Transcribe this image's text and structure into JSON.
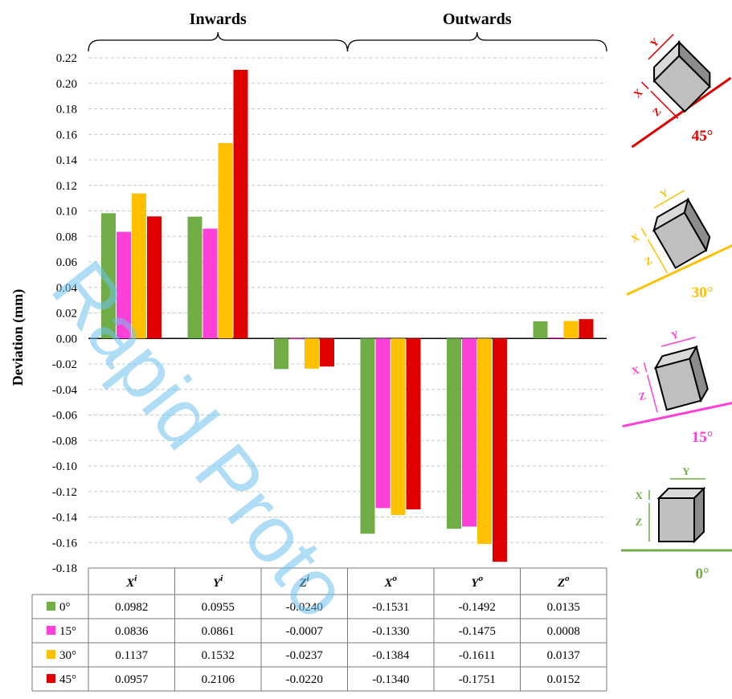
{
  "chart_data": {
    "type": "bar",
    "ylabel": "Deviation (mm)",
    "ylim": [
      -0.18,
      0.22
    ],
    "yticks": [
      "0.22",
      "0.20",
      "0.18",
      "0.16",
      "0.14",
      "0.12",
      "0.10",
      "0.08",
      "0.06",
      "0.04",
      "0.02",
      "0.00",
      "-0.02",
      "-0.04",
      "-0.06",
      "-0.08",
      "-0.10",
      "-0.12",
      "-0.14",
      "-0.16",
      "-0.18"
    ],
    "grid": true,
    "groups": [
      {
        "label": "Inwards"
      },
      {
        "label": "Outwards"
      }
    ],
    "categories": [
      {
        "base": "X",
        "sup": "i"
      },
      {
        "base": "Y",
        "sup": "i"
      },
      {
        "base": "Z",
        "sup": "i"
      },
      {
        "base": "X",
        "sup": "o"
      },
      {
        "base": "Y",
        "sup": "o"
      },
      {
        "base": "Z",
        "sup": "o"
      }
    ],
    "series": [
      {
        "name": "0°",
        "color": "#70ad47",
        "values": [
          0.0982,
          0.0955,
          -0.024,
          -0.1531,
          -0.1492,
          0.0135
        ]
      },
      {
        "name": "15°",
        "color": "#ff40d6",
        "values": [
          0.0836,
          0.0861,
          -0.0007,
          -0.133,
          -0.1475,
          0.0008
        ]
      },
      {
        "name": "30°",
        "color": "#ffc000",
        "values": [
          0.1137,
          0.1532,
          -0.0237,
          -0.1384,
          -0.1611,
          0.0137
        ]
      },
      {
        "name": "45°",
        "color": "#e00000",
        "values": [
          0.0957,
          0.2106,
          -0.022,
          -0.134,
          -0.1751,
          0.0152
        ]
      }
    ],
    "table_rows": [
      {
        "label": "0°",
        "cells": [
          "0.0982",
          "0.0955",
          "-0.0240",
          "-0.1531",
          "-0.1492",
          "0.0135"
        ]
      },
      {
        "label": "15°",
        "cells": [
          "0.0836",
          "0.0861",
          "-0.0007",
          "-0.1330",
          "-0.1475",
          "0.0008"
        ]
      },
      {
        "label": "30°",
        "cells": [
          "0.1137",
          "0.1532",
          "-0.0237",
          "-0.1384",
          "-0.1611",
          "0.0137"
        ]
      },
      {
        "label": "45°",
        "cells": [
          "0.0957",
          "0.2106",
          "-0.0220",
          "-0.1340",
          "-0.1751",
          "0.0152"
        ]
      }
    ]
  },
  "illustrations": [
    {
      "angle": "45°",
      "color": "#e00000",
      "labels": [
        "X",
        "Y",
        "Z"
      ]
    },
    {
      "angle": "30°",
      "color": "#ffc000",
      "labels": [
        "X",
        "Y",
        "Z"
      ]
    },
    {
      "angle": "15°",
      "color": "#ff40d6",
      "labels": [
        "X",
        "Y",
        "Z"
      ]
    },
    {
      "angle": "0°",
      "color": "#70ad47",
      "labels": [
        "X",
        "Y",
        "Z"
      ]
    }
  ],
  "watermark": "Rapid Proto"
}
